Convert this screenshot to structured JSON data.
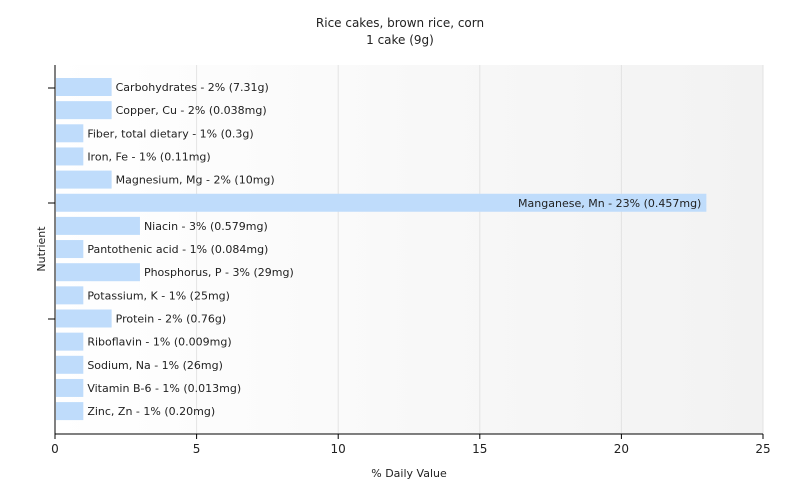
{
  "chart_data": {
    "type": "bar",
    "orientation": "horizontal",
    "title": "Rice cakes, brown rice, corn",
    "subtitle": "1 cake (9g)",
    "xlabel": "% Daily Value",
    "ylabel": "Nutrient",
    "xlim": [
      0,
      25
    ],
    "xticks": [
      0,
      5,
      10,
      15,
      20,
      25
    ],
    "grid": true,
    "legend": "none",
    "bar_color": "#bfdcfb",
    "categories": [
      "Carbohydrates",
      "Copper, Cu",
      "Fiber, total dietary",
      "Iron, Fe",
      "Magnesium, Mg",
      "Manganese, Mn",
      "Niacin",
      "Pantothenic acid",
      "Phosphorus, P",
      "Potassium, K",
      "Protein",
      "Riboflavin",
      "Sodium, Na",
      "Vitamin B-6",
      "Zinc, Zn"
    ],
    "values": [
      2,
      2,
      1,
      1,
      2,
      23,
      3,
      1,
      3,
      1,
      2,
      1,
      1,
      1,
      1
    ],
    "labels": [
      "Carbohydrates - 2% (7.31g)",
      "Copper, Cu - 2% (0.038mg)",
      "Fiber, total dietary - 1% (0.3g)",
      "Iron, Fe - 1% (0.11mg)",
      "Magnesium, Mg - 2% (10mg)",
      "Manganese, Mn - 23% (0.457mg)",
      "Niacin - 3% (0.579mg)",
      "Pantothenic acid - 1% (0.084mg)",
      "Phosphorus, P - 3% (29mg)",
      "Potassium, K - 1% (25mg)",
      "Protein - 2% (0.76g)",
      "Riboflavin - 1% (0.009mg)",
      "Sodium, Na - 1% (26mg)",
      "Vitamin B-6 - 1% (0.013mg)",
      "Zinc, Zn - 1% (0.20mg)"
    ]
  }
}
